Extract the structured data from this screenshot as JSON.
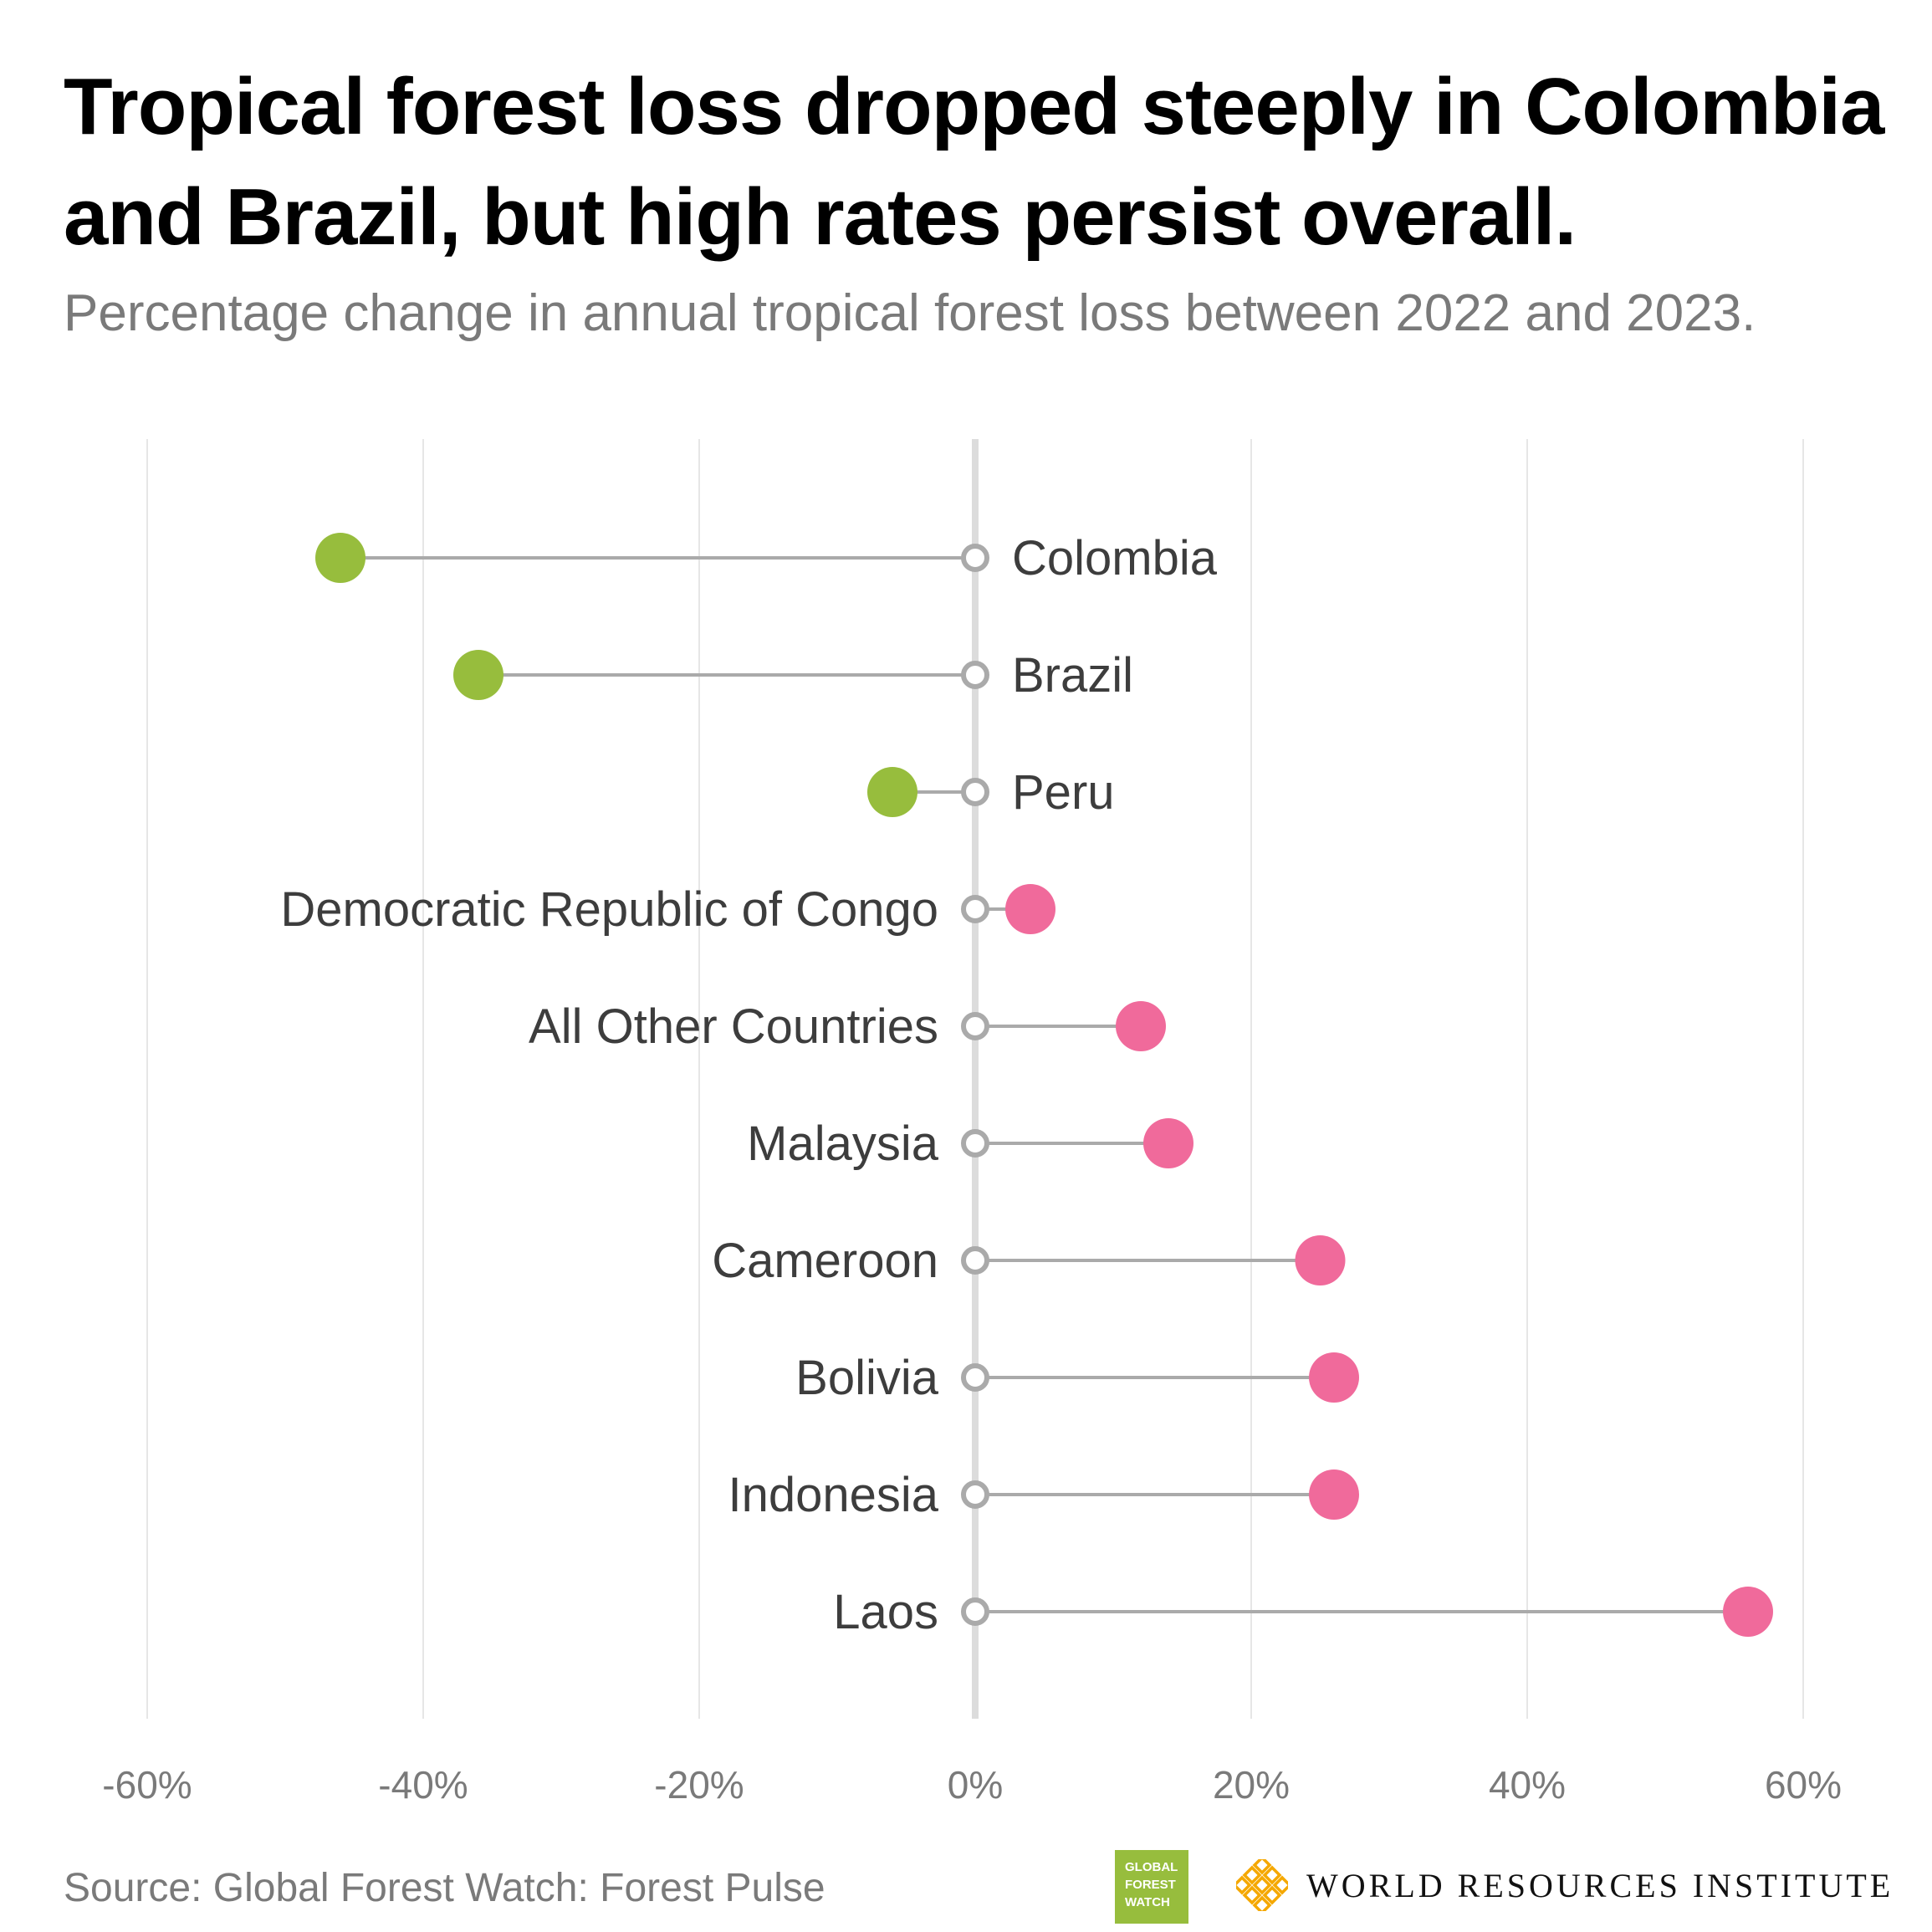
{
  "title": "Tropical forest loss dropped steeply in Colombia and Brazil, but high rates persist overall.",
  "subtitle": "Percentage change in annual tropical forest loss between 2022 and 2023.",
  "source": "Source: Global Forest Watch: Forest Pulse",
  "logos": {
    "gfw_lines": [
      "GLOBAL",
      "FOREST",
      "WATCH"
    ],
    "wri_text": "WORLD RESOURCES INSTITUTE"
  },
  "colors": {
    "decrease": "#97bd3d",
    "increase": "#f06a9b",
    "stem": "#aaaaaa",
    "gridline": "#e6e6e6",
    "zero_line": "#dcdcdc",
    "label": "#3d3d3d",
    "tick": "#7a7a7a",
    "wri_gold": "#f5a800"
  },
  "chart_data": {
    "type": "dumbbell",
    "title": "Tropical forest loss dropped steeply in Colombia and Brazil, but high rates persist overall.",
    "subtitle": "Percentage change in annual tropical forest loss between 2022 and 2023.",
    "xlabel": "",
    "ylabel": "",
    "xlim": [
      -60,
      60
    ],
    "x_ticks": [
      -60,
      -40,
      -20,
      0,
      20,
      40,
      60
    ],
    "x_tick_labels": [
      "-60%",
      "-40%",
      "-20%",
      "0%",
      "20%",
      "40%",
      "60%"
    ],
    "grid": true,
    "legend": "none",
    "baseline": 0,
    "categories": [
      "Colombia",
      "Brazil",
      "Peru",
      "Democratic Republic of Congo",
      "All Other Countries",
      "Malaysia",
      "Cameroon",
      "Bolivia",
      "Indonesia",
      "Laos"
    ],
    "values": [
      -46,
      -36,
      -6,
      4,
      12,
      14,
      25,
      26,
      26,
      56
    ]
  }
}
